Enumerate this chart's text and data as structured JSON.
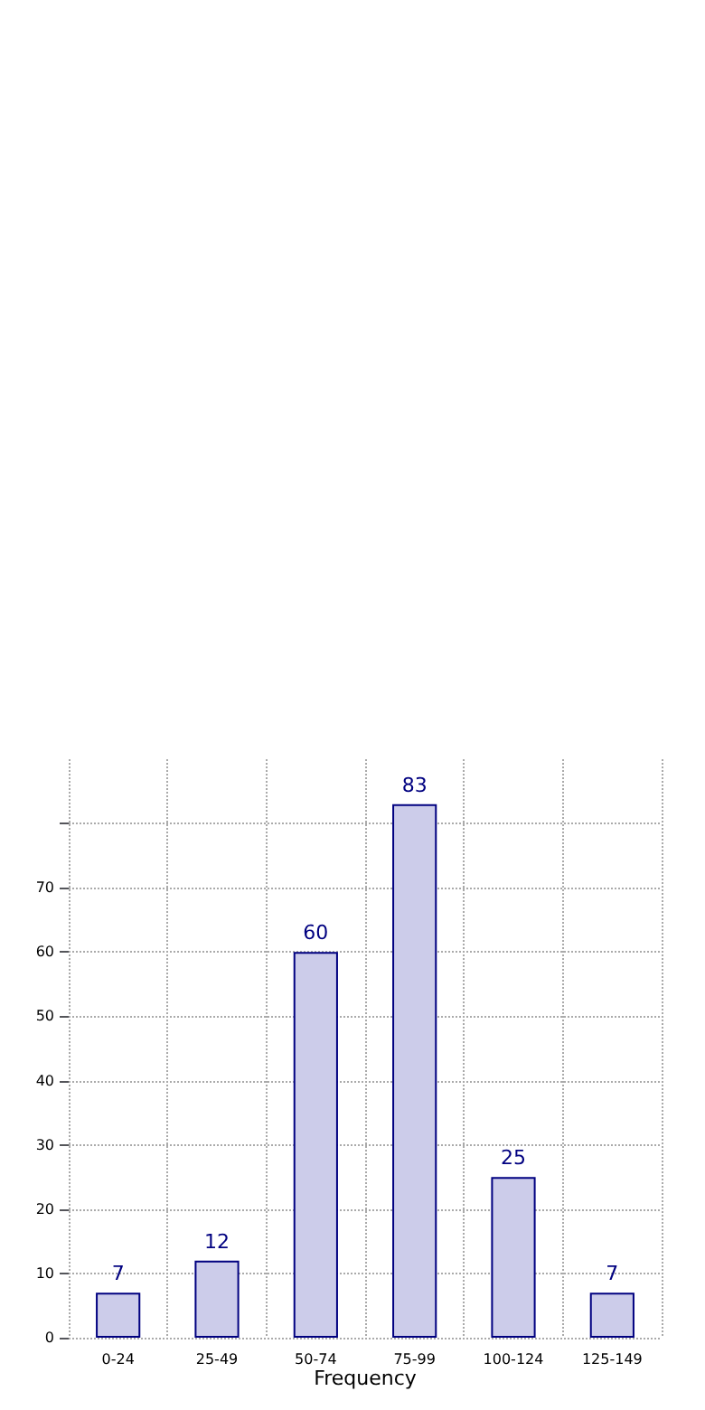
{
  "chart_data": {
    "type": "bar",
    "xlabel": "Frequency",
    "categories": [
      "0-24",
      "25-49",
      "50-74",
      "75-99",
      "100-124",
      "125-149"
    ],
    "values": [
      7,
      12,
      60,
      83,
      25,
      7
    ],
    "color": "#ccccea",
    "ylim": [
      0,
      90
    ],
    "yticks": [
      0,
      10,
      20,
      30,
      40,
      50,
      60,
      70,
      {
        "value": 80,
        "label": null
      }
    ],
    "grid": true,
    "data_labels": true
  }
}
